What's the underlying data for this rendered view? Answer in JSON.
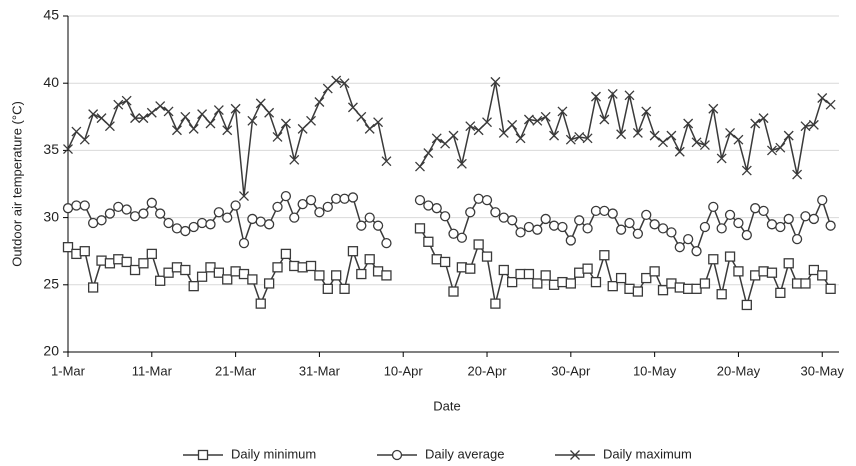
{
  "chart_data": {
    "type": "line",
    "x_label": "Date",
    "y_label": "Outdoor air temperature (°C)",
    "categories": [
      "1-Mar",
      null,
      null,
      null,
      null,
      null,
      null,
      null,
      null,
      null,
      "11-Mar",
      null,
      null,
      null,
      null,
      null,
      null,
      null,
      null,
      null,
      "21-Mar",
      null,
      null,
      null,
      null,
      null,
      null,
      null,
      null,
      null,
      "31-Mar",
      null,
      null,
      null,
      null,
      null,
      null,
      null,
      null,
      null,
      "10-Apr",
      null,
      null,
      null,
      null,
      null,
      null,
      null,
      null,
      null,
      "20-Apr",
      null,
      null,
      null,
      null,
      null,
      null,
      null,
      null,
      null,
      "30-Apr",
      null,
      null,
      null,
      null,
      null,
      null,
      null,
      null,
      null,
      "10-May",
      null,
      null,
      null,
      null,
      null,
      null,
      null,
      null,
      null,
      "20-May",
      null,
      null,
      null,
      null,
      null,
      null,
      null,
      null,
      null,
      "30-May",
      null
    ],
    "ylim": [
      20,
      45
    ],
    "yticks": [
      20,
      25,
      30,
      35,
      40,
      45
    ],
    "grid": true,
    "legend": "bottom",
    "series": [
      {
        "name": "Daily minimum",
        "color": "#3a3a3a",
        "marker": "square",
        "values": [
          27.8,
          27.3,
          27.5,
          24.8,
          26.8,
          26.6,
          26.9,
          26.7,
          26.1,
          26.6,
          27.3,
          25.3,
          25.9,
          26.3,
          26.1,
          24.9,
          25.6,
          26.3,
          25.9,
          25.4,
          26.0,
          25.8,
          25.4,
          23.6,
          25.1,
          26.3,
          27.3,
          26.4,
          26.3,
          26.4,
          25.7,
          24.7,
          25.7,
          24.7,
          27.5,
          25.8,
          26.9,
          26.0,
          25.7,
          null,
          null,
          null,
          29.2,
          28.2,
          26.9,
          26.7,
          24.5,
          26.3,
          26.2,
          28.0,
          27.1,
          23.6,
          26.1,
          25.2,
          25.8,
          25.8,
          25.1,
          25.7,
          25.0,
          25.2,
          25.1,
          25.9,
          26.2,
          25.2,
          27.2,
          24.9,
          25.5,
          24.7,
          24.5,
          25.5,
          26.0,
          24.6,
          25.1,
          24.8,
          24.7,
          24.7,
          25.1,
          26.9,
          24.3,
          27.1,
          26.0,
          23.5,
          25.7,
          26.0,
          25.9,
          24.4,
          26.6,
          25.1,
          25.1,
          26.1,
          25.7,
          24.7
        ]
      },
      {
        "name": "Daily average",
        "color": "#3a3a3a",
        "marker": "circle",
        "values": [
          30.7,
          30.9,
          30.9,
          29.6,
          29.8,
          30.3,
          30.8,
          30.6,
          30.1,
          30.3,
          31.1,
          30.3,
          29.6,
          29.2,
          29.0,
          29.3,
          29.6,
          29.5,
          30.4,
          30.0,
          30.9,
          28.1,
          29.9,
          29.7,
          29.5,
          30.8,
          31.6,
          30.0,
          31.0,
          31.3,
          30.4,
          30.8,
          31.4,
          31.4,
          31.5,
          29.4,
          30.0,
          29.4,
          28.1,
          null,
          null,
          null,
          31.3,
          30.9,
          30.7,
          30.1,
          28.8,
          28.5,
          30.4,
          31.4,
          31.3,
          30.4,
          30.0,
          29.8,
          28.9,
          29.3,
          29.1,
          29.9,
          29.4,
          29.3,
          28.3,
          29.8,
          29.2,
          30.5,
          30.5,
          30.3,
          29.1,
          29.6,
          28.8,
          30.2,
          29.5,
          29.2,
          28.9,
          27.8,
          28.4,
          27.5,
          29.3,
          30.8,
          29.2,
          30.2,
          29.6,
          28.7,
          30.7,
          30.5,
          29.5,
          29.3,
          29.9,
          28.4,
          30.1,
          29.9,
          31.3,
          29.4
        ]
      },
      {
        "name": "Daily maximum",
        "color": "#3a3a3a",
        "marker": "cross",
        "values": [
          35.1,
          36.4,
          35.8,
          37.7,
          37.4,
          36.8,
          38.4,
          38.7,
          37.4,
          37.4,
          37.8,
          38.3,
          37.9,
          36.5,
          37.5,
          36.6,
          37.7,
          37.0,
          38.0,
          36.5,
          38.1,
          31.6,
          37.2,
          38.5,
          37.8,
          36.0,
          37.0,
          34.3,
          36.6,
          37.2,
          38.6,
          39.6,
          40.2,
          40.0,
          38.2,
          37.5,
          36.6,
          37.1,
          34.2,
          null,
          null,
          null,
          33.8,
          34.8,
          35.9,
          35.5,
          36.1,
          34.0,
          36.8,
          36.5,
          37.1,
          40.1,
          36.3,
          36.9,
          35.9,
          37.3,
          37.2,
          37.5,
          36.1,
          37.9,
          35.8,
          36.0,
          35.9,
          39.0,
          37.3,
          39.2,
          36.2,
          39.1,
          36.3,
          37.9,
          36.1,
          35.6,
          36.1,
          34.9,
          37.0,
          35.6,
          35.4,
          38.1,
          34.4,
          36.3,
          35.8,
          33.5,
          37.0,
          37.4,
          35.0,
          35.2,
          36.1,
          33.2,
          36.8,
          36.9,
          38.9,
          38.4
        ]
      }
    ]
  }
}
